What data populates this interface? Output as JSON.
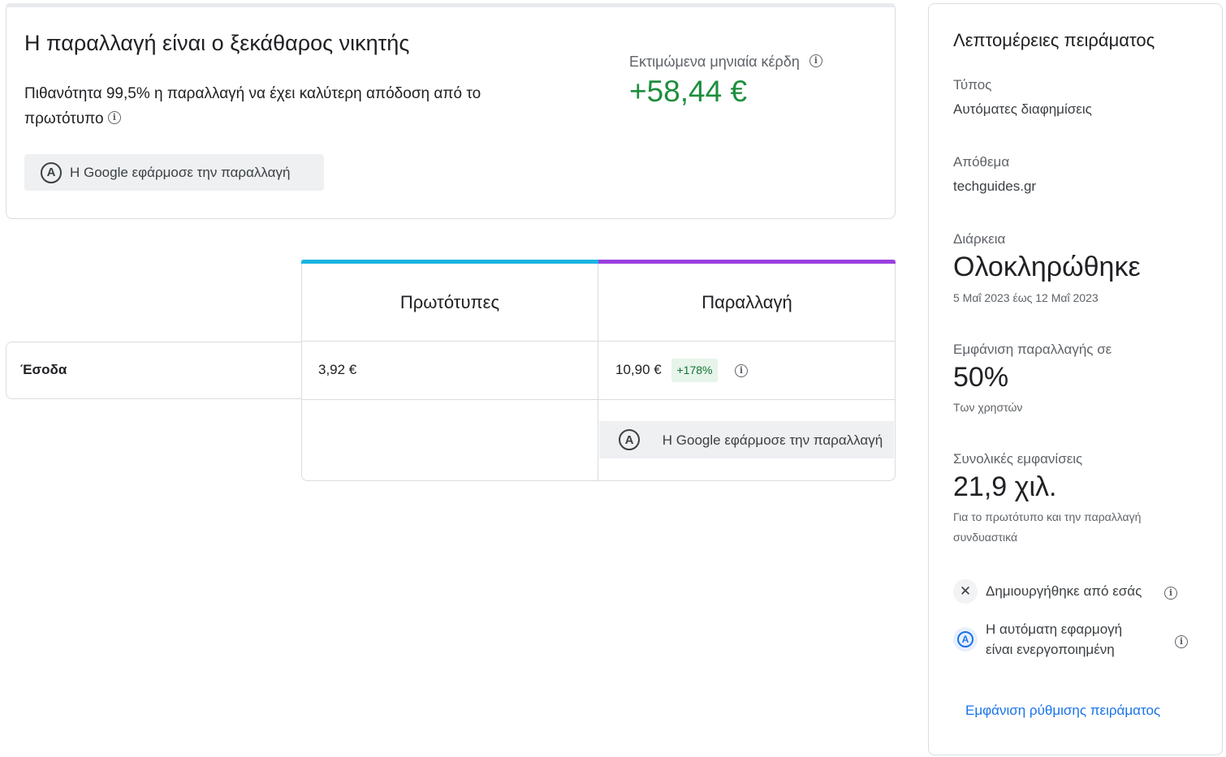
{
  "summary": {
    "title": "Η παραλλαγή είναι ο ξεκάθαρος νικητής",
    "description": "Πιθανότητα 99,5% η παραλλαγή να έχει καλύτερη απόδοση από το πρωτότυπο",
    "applied_chip_icon": "auto-apply-icon",
    "applied_chip_label": "Η Google εφάρμοσε την παραλλαγή",
    "gain_label": "Εκτιμώμενα μηνιαία κέρδη",
    "gain_value": "+58,44 €",
    "gain_color": "#1e8e3e"
  },
  "comparison": {
    "columns": [
      {
        "label": "Πρωτότυπες",
        "color": "#1bb4e0"
      },
      {
        "label": "Παραλλαγή",
        "color": "#9b3fe0"
      }
    ],
    "rows": [
      {
        "label": "Έσοδα",
        "original": "3,92 €",
        "variant": "10,90 €",
        "lift": "+178%"
      }
    ],
    "variant_applied_label": "Η Google εφάρμοσε την παραλλαγή"
  },
  "details": {
    "title": "Λεπτομέρειες πειράματος",
    "type_label": "Τύπος",
    "type_value": "Αυτόματες διαφημίσεις",
    "inventory_label": "Απόθεμα",
    "inventory_value": "techguides.gr",
    "duration_label": "Διάρκεια",
    "duration_value": "Ολοκληρώθηκε",
    "duration_range": "5 Μαΐ 2023 έως 12 Μαΐ 2023",
    "variant_share_label": "Εμφάνιση παραλλαγής σε",
    "variant_share_value": "50%",
    "variant_share_sub": "Των χρηστών",
    "impressions_label": "Συνολικές εμφανίσεις",
    "impressions_value": "21,9 χιλ.",
    "impressions_sub": "Για το πρωτότυπο και την παραλλαγή συνδυαστικά",
    "created_by": "Δημιουργήθηκε από εσάς",
    "auto_apply": "Η αυτόματη εφαρμογή είναι ενεργοποιημένη",
    "setup_link": "Εμφάνιση ρύθμισης πειράματος",
    "link_color": "#1a73e8"
  }
}
